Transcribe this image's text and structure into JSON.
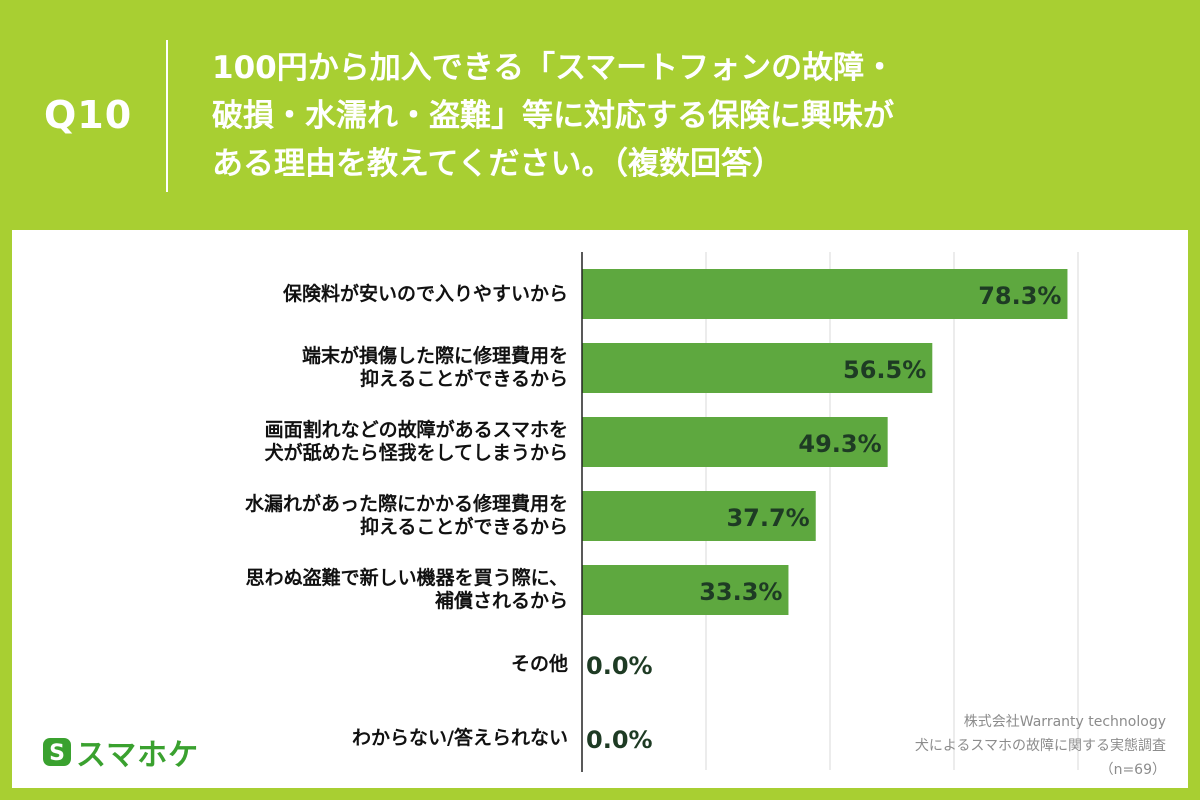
{
  "header": {
    "q_label": "Q10",
    "question_lines": [
      "100円から加入できる「スマートフォンの故障・",
      "破損・水濡れ・盗難」等に対応する保険に興味が",
      "ある理由を教えてください。（複数回答）"
    ]
  },
  "chart_data": {
    "type": "bar",
    "orientation": "horizontal",
    "categories": [
      [
        "保険料が安いので入りやすいから"
      ],
      [
        "端末が損傷した際に修理費用を",
        "抑えることができるから"
      ],
      [
        "画面割れなどの故障があるスマホを",
        "犬が舐めたら怪我をしてしまうから"
      ],
      [
        "水漏れがあった際にかかる修理費用を",
        "抑えることができるから"
      ],
      [
        "思わぬ盗難で新しい機器を買う際に、",
        "補償されるから"
      ],
      [
        "その他"
      ],
      [
        "わからない/答えられない"
      ]
    ],
    "values": [
      78.3,
      56.5,
      49.3,
      37.7,
      33.3,
      0.0,
      0.0
    ],
    "value_labels": [
      "78.3%",
      "56.5%",
      "49.3%",
      "37.7%",
      "33.3%",
      "0.0%",
      "0.0%"
    ],
    "xlim": [
      0,
      100
    ],
    "grid": true,
    "legend": "none",
    "bar_color": "#5ea83f",
    "label_color": "#1e3b24"
  },
  "logo": {
    "mark_letter": "S",
    "name": "スマホケ",
    "color": "#3aa12f"
  },
  "source": {
    "lines": [
      "株式会社Warranty technology",
      "犬によるスマホの故障に関する実態調査",
      "（n=69）"
    ]
  }
}
